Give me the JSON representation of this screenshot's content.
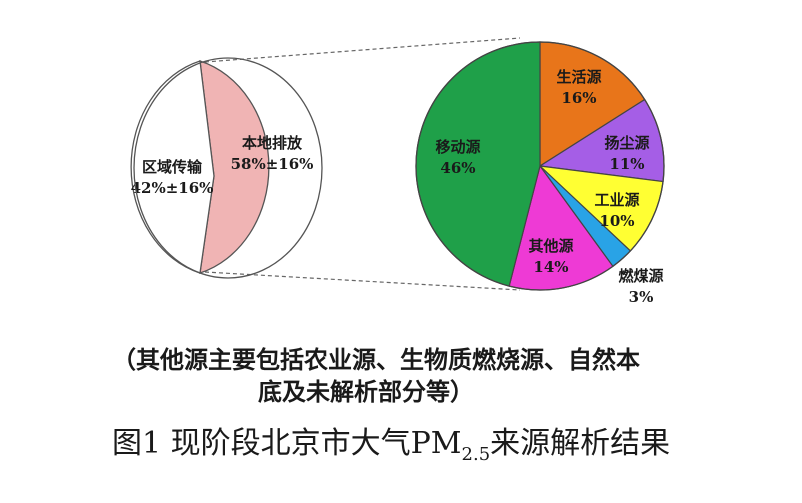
{
  "chart_data": [
    {
      "type": "pie",
      "slices": [
        {
          "label": "本地排放",
          "value_text": "58%±16%",
          "value": 58,
          "color": "#f0b4b4"
        },
        {
          "label": "区域传输",
          "value_text": "42%±16%",
          "value": 42,
          "color": "#ffffff"
        }
      ]
    },
    {
      "type": "pie",
      "slices": [
        {
          "label": "生活源",
          "value_text": "16%",
          "value": 16,
          "color": "#e8751a"
        },
        {
          "label": "扬尘源",
          "value_text": "11%",
          "value": 11,
          "color": "#a55ee6"
        },
        {
          "label": "工业源",
          "value_text": "10%",
          "value": 10,
          "color": "#ffff33"
        },
        {
          "label": "燃煤源",
          "value_text": "3%",
          "value": 3,
          "color": "#29a3e6"
        },
        {
          "label": "其他源",
          "value_text": "14%",
          "value": 14,
          "color": "#ee3ad5"
        },
        {
          "label": "移动源",
          "value_text": "46%",
          "value": 46,
          "color": "#1fa049"
        }
      ]
    }
  ],
  "note": {
    "line1": "（其他源主要包括农业源、生物质燃烧源、自然本",
    "line2": "底及未解析部分等）"
  },
  "caption": {
    "prefix": "图1 现阶段北京市大气PM",
    "subscript": "2.5",
    "suffix": "来源解析结果"
  }
}
